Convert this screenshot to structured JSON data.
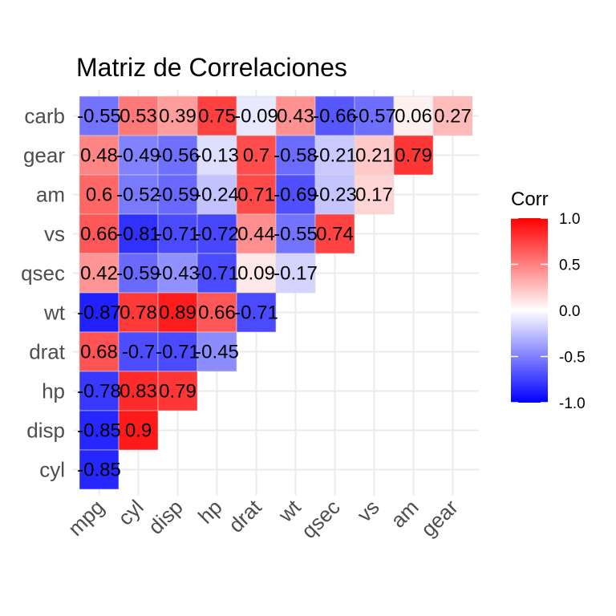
{
  "chart_data": {
    "type": "heatmap",
    "title": "Matriz de Correlaciones",
    "xlabel": "",
    "ylabel": "",
    "x_categories": [
      "mpg",
      "cyl",
      "disp",
      "hp",
      "drat",
      "wt",
      "qsec",
      "vs",
      "am",
      "gear"
    ],
    "y_categories": [
      "cyl",
      "disp",
      "hp",
      "drat",
      "wt",
      "qsec",
      "vs",
      "am",
      "gear",
      "carb"
    ],
    "cells": [
      {
        "x": "mpg",
        "y": "carb",
        "value": -0.55
      },
      {
        "x": "cyl",
        "y": "carb",
        "value": 0.53
      },
      {
        "x": "disp",
        "y": "carb",
        "value": 0.39
      },
      {
        "x": "hp",
        "y": "carb",
        "value": 0.75
      },
      {
        "x": "drat",
        "y": "carb",
        "value": -0.09
      },
      {
        "x": "wt",
        "y": "carb",
        "value": 0.43
      },
      {
        "x": "qsec",
        "y": "carb",
        "value": -0.66
      },
      {
        "x": "vs",
        "y": "carb",
        "value": -0.57
      },
      {
        "x": "am",
        "y": "carb",
        "value": 0.06
      },
      {
        "x": "gear",
        "y": "carb",
        "value": 0.27
      },
      {
        "x": "mpg",
        "y": "gear",
        "value": 0.48
      },
      {
        "x": "cyl",
        "y": "gear",
        "value": -0.49
      },
      {
        "x": "disp",
        "y": "gear",
        "value": -0.56
      },
      {
        "x": "hp",
        "y": "gear",
        "value": -0.13
      },
      {
        "x": "drat",
        "y": "gear",
        "value": 0.7
      },
      {
        "x": "wt",
        "y": "gear",
        "value": -0.58
      },
      {
        "x": "qsec",
        "y": "gear",
        "value": -0.21
      },
      {
        "x": "vs",
        "y": "gear",
        "value": 0.21
      },
      {
        "x": "am",
        "y": "gear",
        "value": 0.79
      },
      {
        "x": "mpg",
        "y": "am",
        "value": 0.6
      },
      {
        "x": "cyl",
        "y": "am",
        "value": -0.52
      },
      {
        "x": "disp",
        "y": "am",
        "value": -0.59
      },
      {
        "x": "hp",
        "y": "am",
        "value": -0.24
      },
      {
        "x": "drat",
        "y": "am",
        "value": 0.71
      },
      {
        "x": "wt",
        "y": "am",
        "value": -0.69
      },
      {
        "x": "qsec",
        "y": "am",
        "value": -0.23
      },
      {
        "x": "vs",
        "y": "am",
        "value": 0.17
      },
      {
        "x": "mpg",
        "y": "vs",
        "value": 0.66
      },
      {
        "x": "cyl",
        "y": "vs",
        "value": -0.81
      },
      {
        "x": "disp",
        "y": "vs",
        "value": -0.71
      },
      {
        "x": "hp",
        "y": "vs",
        "value": -0.72
      },
      {
        "x": "drat",
        "y": "vs",
        "value": 0.44
      },
      {
        "x": "wt",
        "y": "vs",
        "value": -0.55
      },
      {
        "x": "qsec",
        "y": "vs",
        "value": 0.74
      },
      {
        "x": "mpg",
        "y": "qsec",
        "value": 0.42
      },
      {
        "x": "cyl",
        "y": "qsec",
        "value": -0.59
      },
      {
        "x": "disp",
        "y": "qsec",
        "value": -0.43
      },
      {
        "x": "hp",
        "y": "qsec",
        "value": -0.71
      },
      {
        "x": "drat",
        "y": "qsec",
        "value": 0.09
      },
      {
        "x": "wt",
        "y": "qsec",
        "value": -0.17
      },
      {
        "x": "mpg",
        "y": "wt",
        "value": -0.87
      },
      {
        "x": "cyl",
        "y": "wt",
        "value": 0.78
      },
      {
        "x": "disp",
        "y": "wt",
        "value": 0.89
      },
      {
        "x": "hp",
        "y": "wt",
        "value": 0.66
      },
      {
        "x": "drat",
        "y": "wt",
        "value": -0.71
      },
      {
        "x": "mpg",
        "y": "drat",
        "value": 0.68
      },
      {
        "x": "cyl",
        "y": "drat",
        "value": -0.7
      },
      {
        "x": "disp",
        "y": "drat",
        "value": -0.71
      },
      {
        "x": "hp",
        "y": "drat",
        "value": -0.45
      },
      {
        "x": "mpg",
        "y": "hp",
        "value": -0.78
      },
      {
        "x": "cyl",
        "y": "hp",
        "value": 0.83
      },
      {
        "x": "disp",
        "y": "hp",
        "value": 0.79
      },
      {
        "x": "mpg",
        "y": "disp",
        "value": -0.85
      },
      {
        "x": "cyl",
        "y": "disp",
        "value": 0.9
      },
      {
        "x": "mpg",
        "y": "cyl",
        "value": -0.85
      }
    ],
    "legend": {
      "title": "Corr",
      "range": [
        -1,
        1
      ],
      "ticks": [
        "1.0",
        "0.5",
        "0.0",
        "-0.5",
        "-1.0"
      ],
      "tick_values": [
        1.0,
        0.5,
        0.0,
        -0.5,
        -1.0
      ],
      "placement": "right"
    },
    "colors": {
      "low": "#0000ff",
      "mid": "#ffffff",
      "high": "#ff0000",
      "grid": "#ebebeb",
      "tick_text": "#4d4d4d"
    },
    "grid": true
  }
}
